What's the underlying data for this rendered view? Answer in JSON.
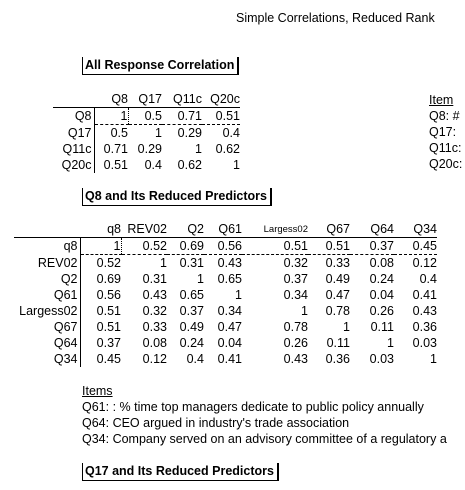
{
  "page_title": "Simple Correlations, Reduced Rank",
  "sections": [
    {
      "title": "All Response Correlation"
    },
    {
      "title": "Q8 and Its Reduced Predictors"
    },
    {
      "title": "Q17 and Its Reduced Predictors"
    }
  ],
  "table1": {
    "headers": [
      "Q8",
      "Q17",
      "Q11c",
      "Q20c"
    ],
    "rows": [
      {
        "label": "Q8",
        "values": [
          "1",
          "0.5",
          "0.71",
          "0.51"
        ]
      },
      {
        "label": "Q17",
        "values": [
          "0.5",
          "1",
          "0.29",
          "0.4"
        ]
      },
      {
        "label": "Q11c",
        "values": [
          "0.71",
          "0.29",
          "1",
          "0.62"
        ]
      },
      {
        "label": "Q20c",
        "values": [
          "0.51",
          "0.4",
          "0.62",
          "1"
        ]
      }
    ]
  },
  "side_items": {
    "heading": "Item",
    "lines": [
      "Q8:  #",
      "Q17:",
      "Q11c:",
      "Q20c:"
    ]
  },
  "table2": {
    "headers": [
      "q8",
      "REV02",
      "Q2",
      "Q61",
      "Largess02",
      "Q67",
      "Q64",
      "Q34"
    ],
    "rows": [
      {
        "label": "q8",
        "values": [
          "1",
          "0.52",
          "0.69",
          "0.56",
          "0.51",
          "0.51",
          "0.37",
          "0.45"
        ]
      },
      {
        "label": "REV02",
        "values": [
          "0.52",
          "1",
          "0.31",
          "0.43",
          "0.32",
          "0.33",
          "0.08",
          "0.12"
        ]
      },
      {
        "label": "Q2",
        "values": [
          "0.69",
          "0.31",
          "1",
          "0.65",
          "0.37",
          "0.49",
          "0.24",
          "0.4"
        ]
      },
      {
        "label": "Q61",
        "values": [
          "0.56",
          "0.43",
          "0.65",
          "1",
          "0.34",
          "0.47",
          "0.04",
          "0.41"
        ]
      },
      {
        "label": "Largess02",
        "values": [
          "0.51",
          "0.32",
          "0.37",
          "0.34",
          "1",
          "0.78",
          "0.26",
          "0.43"
        ]
      },
      {
        "label": "Q67",
        "values": [
          "0.51",
          "0.33",
          "0.49",
          "0.47",
          "0.78",
          "1",
          "0.11",
          "0.36"
        ]
      },
      {
        "label": "Q64",
        "values": [
          "0.37",
          "0.08",
          "0.24",
          "0.04",
          "0.26",
          "0.11",
          "1",
          "0.03"
        ]
      },
      {
        "label": "Q34",
        "values": [
          "0.45",
          "0.12",
          "0.4",
          "0.41",
          "0.43",
          "0.36",
          "0.03",
          "1"
        ]
      }
    ]
  },
  "items": {
    "heading": "Items",
    "lines": [
      "Q61: : % time top managers dedicate to public policy annually",
      "Q64: CEO argued in industry's trade association",
      "Q34: Company served on an advisory committee of a regulatory a"
    ]
  }
}
